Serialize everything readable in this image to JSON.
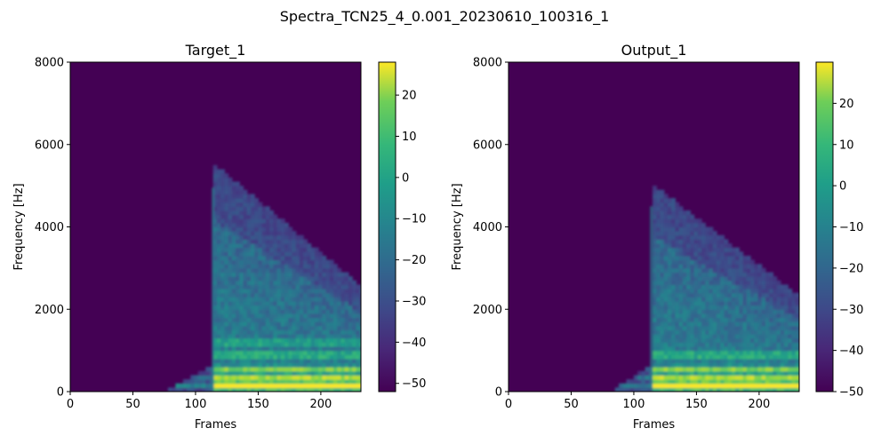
{
  "figure_title": "Spectra_TCN25_4_0.001_20230610_100316_1",
  "colors": {
    "viridis_dark": "#440154",
    "viridis_blue": "#31688e",
    "viridis_teal": "#21918c",
    "viridis_green": "#35b779",
    "viridis_yellow": "#fde725"
  },
  "chart_data": [
    {
      "type": "heatmap",
      "title": "Target_1",
      "xlabel": "Frames",
      "ylabel": "Frequency [Hz]",
      "xlim": [
        0,
        232
      ],
      "ylim": [
        0,
        8000
      ],
      "xticks": [
        0,
        50,
        100,
        150,
        200
      ],
      "yticks": [
        0,
        2000,
        4000,
        6000,
        8000
      ],
      "colormap": "viridis",
      "colorbar": {
        "vmin": -52,
        "vmax": 28,
        "ticks": [
          -50,
          -40,
          -30,
          -20,
          -10,
          0,
          10,
          20
        ],
        "tick_labels": [
          "−50",
          "−40",
          "−30",
          "−20",
          "−10",
          "0",
          "10",
          "20"
        ]
      },
      "onset_frame": 113,
      "pre_onset_from_frame": 75,
      "max_extent_hz": 5500,
      "strong_bands_hz": [
        150,
        350,
        550,
        900,
        1200
      ]
    },
    {
      "type": "heatmap",
      "title": "Output_1",
      "xlabel": "Frames",
      "ylabel": "Frequency [Hz]",
      "xlim": [
        0,
        232
      ],
      "ylim": [
        0,
        8000
      ],
      "xticks": [
        0,
        50,
        100,
        150,
        200
      ],
      "yticks": [
        0,
        2000,
        4000,
        6000,
        8000
      ],
      "colormap": "viridis",
      "colorbar": {
        "vmin": -50,
        "vmax": 30,
        "ticks": [
          -50,
          -40,
          -30,
          -20,
          -10,
          0,
          10,
          20
        ],
        "tick_labels": [
          "−50",
          "−40",
          "−30",
          "−20",
          "−10",
          "0",
          "10",
          "20"
        ]
      },
      "onset_frame": 113,
      "pre_onset_from_frame": 82,
      "max_extent_hz": 5000,
      "strong_bands_hz": [
        150,
        350,
        550,
        900
      ]
    }
  ]
}
